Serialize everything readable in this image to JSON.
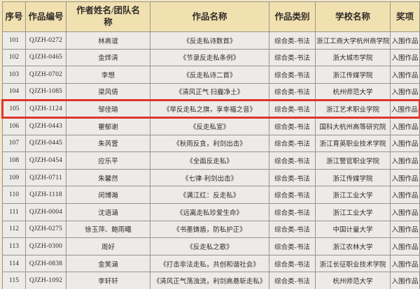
{
  "colors": {
    "header_bg": "#f2e1b0",
    "row_bg": "#edebe8",
    "highlight_border": "#e1352a",
    "grid_line": "#96948e"
  },
  "table": {
    "headers": [
      "序号",
      "作品编号",
      "作者姓名/团队名称",
      "作品名称",
      "作品类别",
      "学校名称",
      "奖项"
    ],
    "rows": [
      {
        "no": "101",
        "id": "QJZH-0272",
        "author": "林高谊",
        "title": "《反走私诗数首》",
        "category": "综合类-书法",
        "school": "浙江工商大学杭州商学院",
        "award": "入围作品",
        "highlight": false
      },
      {
        "no": "102",
        "id": "QJZH-0465",
        "author": "金烨清",
        "title": "《节录反走私条例》",
        "category": "综合类-书法",
        "school": "浙大城市学院",
        "award": "入围作品",
        "highlight": false
      },
      {
        "no": "103",
        "id": "QJZH-0702",
        "author": "李想",
        "title": "《反走私诗二首》",
        "category": "综合类-书法",
        "school": "浙江传媒学院",
        "award": "入围作品",
        "highlight": false
      },
      {
        "no": "104",
        "id": "QJZH-1085",
        "author": "梁风倩",
        "title": "《清风正气 扫霾净土》",
        "category": "综合类-书法",
        "school": "杭州师范大学",
        "award": "入围作品",
        "highlight": false
      },
      {
        "no": "105",
        "id": "QJZH-1124",
        "author": "邹佳瑜",
        "title": "《举反走私之旗，享幸福之音》",
        "category": "综合类-书法",
        "school": "浙江艺术职业学院",
        "award": "入围作品",
        "highlight": true
      },
      {
        "no": "106",
        "id": "QJZH-0443",
        "author": "瞿郁谢",
        "title": "《反走私宣》",
        "category": "综合类-书法",
        "school": "国科大杭州高等研究院",
        "award": "入围作品",
        "highlight": false
      },
      {
        "no": "107",
        "id": "QJZH-0445",
        "author": "朱芮萱",
        "title": "《秋雨反贪，利剑出击》",
        "category": "综合类-书法",
        "school": "浙江育英职业技术学院",
        "award": "入围作品",
        "highlight": false
      },
      {
        "no": "108",
        "id": "QJZH-0454",
        "author": "应乐平",
        "title": "《全面反走私》",
        "category": "综合类-书法",
        "school": "浙江警官职业学院",
        "award": "入围作品",
        "highlight": false
      },
      {
        "no": "109",
        "id": "QJZH-0711",
        "author": "朱馨然",
        "title": "《七律·利剑出击》",
        "category": "综合类-书法",
        "school": "浙江传媒学院",
        "award": "入围作品",
        "highlight": false
      },
      {
        "no": "110",
        "id": "QJZH-1118",
        "author": "闵博瀚",
        "title": "《满江红：反走私》",
        "category": "综合类-书法",
        "school": "浙江工业大学",
        "award": "入围作品",
        "highlight": false
      },
      {
        "no": "111",
        "id": "QJZH-0004",
        "author": "沈语涵",
        "title": "《远离走私珍爱生命》",
        "category": "综合类-书法",
        "school": "浙江工业大学",
        "award": "入围作品",
        "highlight": false
      },
      {
        "no": "112",
        "id": "QJZH-0275",
        "author": "徐玉萍、鲍雨曦",
        "title": "《书墨铸盾，防私护正》",
        "category": "综合类-书法",
        "school": "中国计量大学",
        "award": "入围作品",
        "highlight": false
      },
      {
        "no": "113",
        "id": "QJZH-0300",
        "author": "周好",
        "title": "《反走私之歌》",
        "category": "综合类-书法",
        "school": "浙江农林大学",
        "award": "入围作品",
        "highlight": false
      },
      {
        "no": "114",
        "id": "QJZH-0838",
        "author": "金笑涵",
        "title": "《打击非法走私，共创和谐社会》",
        "category": "综合类-书法",
        "school": "浙江长征职业技术学院",
        "award": "入围作品",
        "highlight": false
      },
      {
        "no": "115",
        "id": "QJZH-1092",
        "author": "李轩轩",
        "title": "《清风正气荡浊流，利剑高悬斩走私》",
        "category": "综合类-书法",
        "school": "杭州师范大学",
        "award": "入围作品",
        "highlight": false
      }
    ]
  }
}
